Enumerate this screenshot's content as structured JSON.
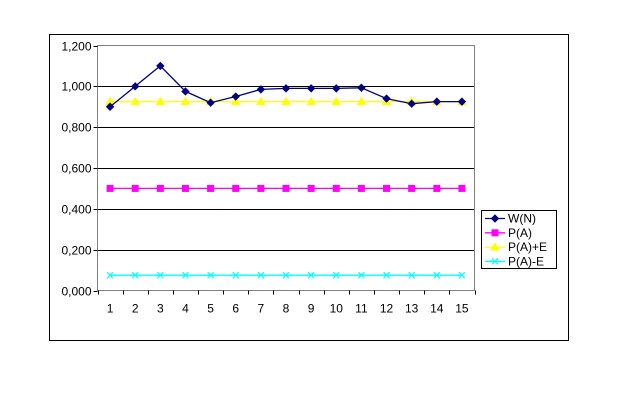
{
  "chart_data": {
    "type": "line",
    "categories": [
      "1",
      "2",
      "3",
      "4",
      "5",
      "6",
      "7",
      "8",
      "9",
      "10",
      "11",
      "12",
      "13",
      "14",
      "15"
    ],
    "ylim": [
      0,
      1.2
    ],
    "yticks": [
      "0,000",
      "0,200",
      "0,400",
      "0,600",
      "0,800",
      "1,000",
      "1,200"
    ],
    "ytick_values": [
      0,
      0.2,
      0.4,
      0.6,
      0.8,
      1.0,
      1.2
    ],
    "grid": "horizontal major gridlines",
    "legend_position": "right",
    "series": [
      {
        "name": "W(N)",
        "color": "#000080",
        "marker": "diamond",
        "values": [
          0.9,
          1.0,
          1.1,
          0.975,
          0.92,
          0.95,
          0.985,
          0.99,
          0.99,
          0.99,
          0.993,
          0.94,
          0.915,
          0.925,
          0.925
        ]
      },
      {
        "name": "P(A)",
        "color": "#FF00FF",
        "marker": "square",
        "values": [
          0.5,
          0.5,
          0.5,
          0.5,
          0.5,
          0.5,
          0.5,
          0.5,
          0.5,
          0.5,
          0.5,
          0.5,
          0.5,
          0.5,
          0.5
        ]
      },
      {
        "name": "P(A)+E",
        "color": "#FFFF00",
        "marker": "triangle",
        "values": [
          0.925,
          0.925,
          0.925,
          0.925,
          0.925,
          0.925,
          0.925,
          0.925,
          0.925,
          0.925,
          0.925,
          0.925,
          0.925,
          0.925,
          0.925
        ]
      },
      {
        "name": "P(A)-E",
        "color": "#00FFFF",
        "marker": "x",
        "values": [
          0.075,
          0.075,
          0.075,
          0.075,
          0.075,
          0.075,
          0.075,
          0.075,
          0.075,
          0.075,
          0.075,
          0.075,
          0.075,
          0.075,
          0.075
        ]
      }
    ]
  }
}
